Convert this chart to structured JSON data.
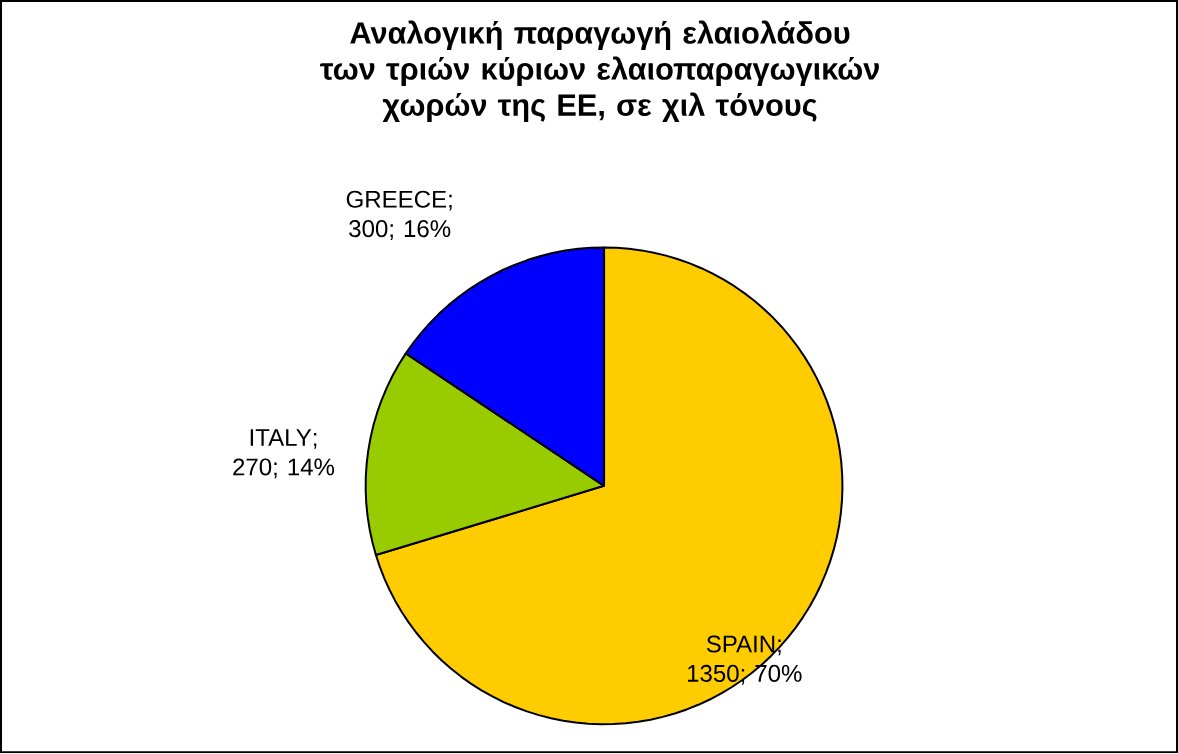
{
  "chart_data": {
    "type": "pie",
    "title": "Αναλογική παραγωγή ελαιολάδου των τριών κύριων ελαιοπαραγωγικών χωρών της ΕΕ, σε χιλ τόνους",
    "categories": [
      "SPAIN",
      "ITALY",
      "GREECE"
    ],
    "values": [
      1350,
      270,
      300
    ],
    "colors": [
      "#ffcc00",
      "#99cc00",
      "#0000ff"
    ],
    "value_labels": [
      "; 1350; 70%",
      "; 270; 14%",
      "; 300; 16%"
    ]
  }
}
